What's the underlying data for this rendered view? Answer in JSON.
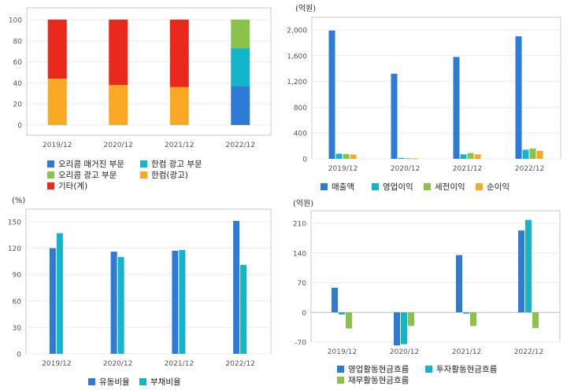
{
  "chart_data": [
    {
      "type": "bar",
      "stacked": true,
      "unit": "",
      "categories": [
        "2019/12",
        "2020/12",
        "2021/12",
        "2022/12"
      ],
      "ylim": [
        0,
        100
      ],
      "yticks": [
        0,
        20,
        40,
        60,
        80,
        100
      ],
      "series": [
        {
          "name": "오리콤 매거진 부문",
          "color": "#2e7bd6",
          "values": [
            0,
            0,
            0,
            37
          ]
        },
        {
          "name": "한컴 광고 부문",
          "color": "#12b5c9",
          "values": [
            0,
            0,
            0,
            36
          ]
        },
        {
          "name": "오리콤 광고 부문",
          "color": "#8bc34a",
          "values": [
            0,
            0,
            0,
            27
          ]
        },
        {
          "name": "한컴(광고)",
          "color": "#f9a825",
          "values": [
            44,
            38,
            36,
            0
          ]
        },
        {
          "name": "기타(계)",
          "color": "#e8291c",
          "values": [
            56,
            62,
            64,
            0
          ]
        }
      ],
      "grid": true,
      "legend": "bottom"
    },
    {
      "type": "bar",
      "unit": "(억원)",
      "categories": [
        "2019/12",
        "2020/12",
        "2021/12",
        "2022/12"
      ],
      "ylim": [
        0,
        2000
      ],
      "yticks": [
        0,
        400,
        800,
        1200,
        1600,
        2000
      ],
      "ytick_labels": [
        "0",
        "400",
        "800",
        "1,200",
        "1,600",
        "2,000"
      ],
      "series": [
        {
          "name": "매출액",
          "color": "#2e7bd6",
          "values": [
            1990,
            1320,
            1580,
            1900
          ]
        },
        {
          "name": "영업이익",
          "color": "#12b5c9",
          "values": [
            80,
            15,
            70,
            140
          ]
        },
        {
          "name": "세전이익",
          "color": "#8bc34a",
          "values": [
            75,
            10,
            90,
            160
          ]
        },
        {
          "name": "순이익",
          "color": "#f9a825",
          "values": [
            65,
            8,
            70,
            125
          ]
        }
      ],
      "grid": true,
      "legend": "bottom"
    },
    {
      "type": "bar",
      "unit": "(%)",
      "categories": [
        "2019/12",
        "2020/12",
        "2021/12",
        "2022/12"
      ],
      "ylim": [
        0,
        150
      ],
      "yticks": [
        0,
        30,
        60,
        90,
        120,
        150
      ],
      "series": [
        {
          "name": "유동비율",
          "color": "#2e7bd6",
          "values": [
            120,
            116,
            117,
            151
          ]
        },
        {
          "name": "부채비율",
          "color": "#12b5c9",
          "values": [
            137,
            110,
            118,
            101
          ]
        }
      ],
      "grid": true,
      "legend": "bottom"
    },
    {
      "type": "bar",
      "unit": "(억원)",
      "categories": [
        "2019/12",
        "2020/12",
        "2021/12",
        "2022/12"
      ],
      "ylim": [
        -70,
        210
      ],
      "yticks": [
        -70,
        0,
        70,
        140,
        210
      ],
      "series": [
        {
          "name": "영업활동현금흐름",
          "color": "#2e7bd6",
          "values": [
            58,
            -78,
            135,
            193
          ]
        },
        {
          "name": "투자활동현금흐름",
          "color": "#12b5c9",
          "values": [
            -5,
            -75,
            -3,
            218
          ]
        },
        {
          "name": "재무활동현금흐름",
          "color": "#8bc34a",
          "values": [
            -38,
            -32,
            -32,
            -37
          ]
        }
      ],
      "grid": true,
      "legend": "bottom"
    }
  ]
}
